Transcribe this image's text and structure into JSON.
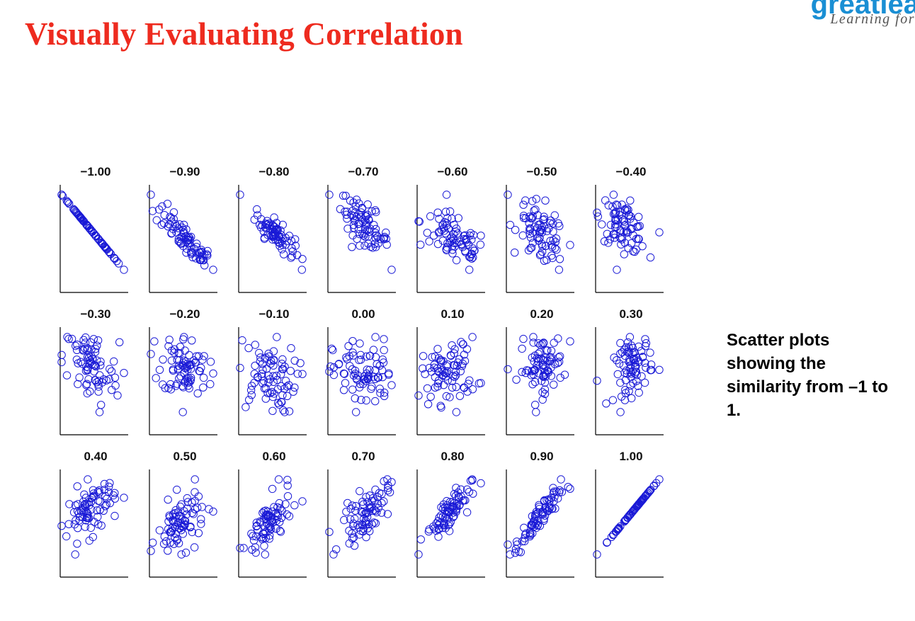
{
  "slide": {
    "title": "Visually Evaluating Correlation",
    "note": "Scatter plots showing the similarity from –1 to 1."
  },
  "logo": {
    "word": "greatlea",
    "tagline": "Learning for"
  },
  "colors": {
    "title": "#ee2b1f",
    "points": "#1a1ad6",
    "logo": "#1a8fd4"
  },
  "chart_data": {
    "type": "scatter",
    "layout": "small-multiples grid, 3 rows x 7 columns",
    "marker": "open circle",
    "points_per_panel": 80,
    "axes": "left and bottom axis lines only, no ticks",
    "grid": false,
    "panels": [
      {
        "label": "−1.00",
        "r": -1.0
      },
      {
        "label": "−0.90",
        "r": -0.9
      },
      {
        "label": "−0.80",
        "r": -0.8
      },
      {
        "label": "−0.70",
        "r": -0.7
      },
      {
        "label": "−0.60",
        "r": -0.6
      },
      {
        "label": "−0.50",
        "r": -0.5
      },
      {
        "label": "−0.40",
        "r": -0.4
      },
      {
        "label": "−0.30",
        "r": -0.3
      },
      {
        "label": "−0.20",
        "r": -0.2
      },
      {
        "label": "−0.10",
        "r": -0.1
      },
      {
        "label": "0.00",
        "r": 0.0
      },
      {
        "label": "0.10",
        "r": 0.1
      },
      {
        "label": "0.20",
        "r": 0.2
      },
      {
        "label": "0.30",
        "r": 0.3
      },
      {
        "label": "0.40",
        "r": 0.4
      },
      {
        "label": "0.50",
        "r": 0.5
      },
      {
        "label": "0.60",
        "r": 0.6
      },
      {
        "label": "0.70",
        "r": 0.7
      },
      {
        "label": "0.80",
        "r": 0.8
      },
      {
        "label": "0.90",
        "r": 0.9
      },
      {
        "label": "1.00",
        "r": 1.0
      }
    ]
  }
}
